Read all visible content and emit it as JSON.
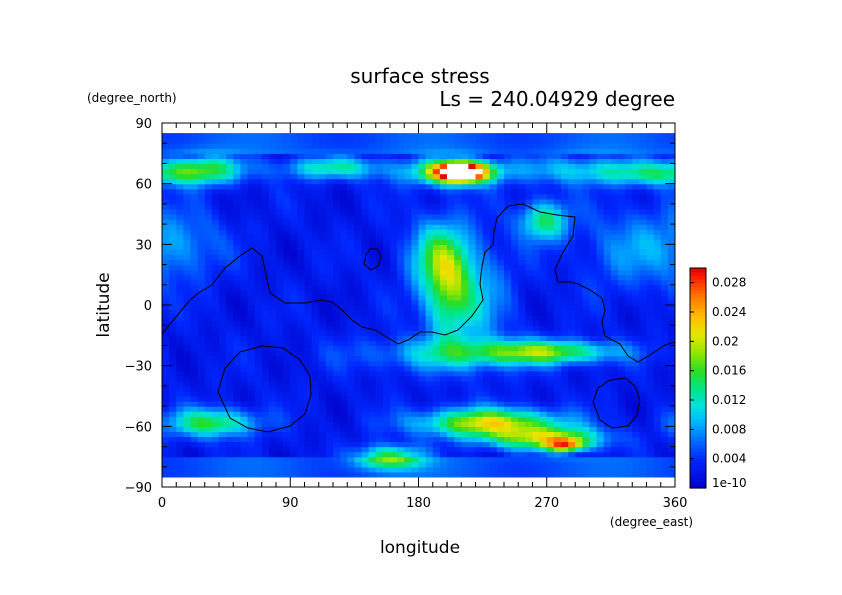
{
  "chart_data": {
    "type": "heatmap",
    "title": "surface stress",
    "subtitle": "Ls = 240.04929 degree",
    "xlabel": "longitude",
    "ylabel": "latitude",
    "x_units": "(degree_east)",
    "y_units": "(degree_north)",
    "xlim": [
      0,
      360
    ],
    "ylim": [
      -90,
      90
    ],
    "data_lat_range": [
      -85,
      85
    ],
    "x_ticks": [
      0,
      90,
      180,
      270,
      360
    ],
    "y_ticks": [
      -90,
      -60,
      -30,
      0,
      30,
      60,
      90
    ],
    "colorbar": {
      "min": 1e-10,
      "max": 0.03,
      "tick_values": [
        1e-10,
        0.004,
        0.008,
        0.012,
        0.016,
        0.02,
        0.024,
        0.028
      ],
      "tick_labels": [
        "1e-10",
        "0.004",
        "0.008",
        "0.012",
        "0.016",
        "0.02",
        "0.024",
        "0.028"
      ]
    },
    "grid": false,
    "field_features": [
      {
        "lon": 210,
        "lat": 66,
        "lon_width": 14,
        "lat_width": 3.5,
        "value": 0.031
      },
      {
        "lon": 198,
        "lat": 66,
        "lon_width": 22,
        "lat_width": 5,
        "value": 0.01
      },
      {
        "lon": 30,
        "lat": 67,
        "lon_width": 20,
        "lat_width": 5,
        "value": 0.013
      },
      {
        "lon": 120,
        "lat": 68,
        "lon_width": 25,
        "lat_width": 4,
        "value": 0.01
      },
      {
        "lon": 290,
        "lat": 67,
        "lon_width": 40,
        "lat_width": 5,
        "value": 0.007
      },
      {
        "lon": 345,
        "lat": 65,
        "lon_width": 25,
        "lat_width": 4,
        "value": 0.008
      },
      {
        "lon": 230,
        "lat": -58,
        "lon_width": 35,
        "lat_width": 5,
        "value": 0.018
      },
      {
        "lon": 270,
        "lat": -66,
        "lon_width": 28,
        "lat_width": 4,
        "value": 0.015
      },
      {
        "lon": 283,
        "lat": -69,
        "lon_width": 9,
        "lat_width": 2.5,
        "value": 0.016
      },
      {
        "lon": 35,
        "lat": -58,
        "lon_width": 22,
        "lat_width": 5,
        "value": 0.013
      },
      {
        "lon": 160,
        "lat": -75,
        "lon_width": 16,
        "lat_width": 4,
        "value": 0.014
      },
      {
        "lon": 270,
        "lat": -23,
        "lon_width": 35,
        "lat_width": 4,
        "value": 0.014
      },
      {
        "lon": 200,
        "lat": -24,
        "lon_width": 45,
        "lat_width": 6,
        "value": 0.007
      },
      {
        "lon": 200,
        "lat": 10,
        "lon_width": 12,
        "lat_width": 18,
        "value": 0.012
      },
      {
        "lon": 190,
        "lat": 25,
        "lon_width": 15,
        "lat_width": 12,
        "value": 0.007
      },
      {
        "lon": 220,
        "lat": 5,
        "lon_width": 18,
        "lat_width": 20,
        "value": 0.006
      },
      {
        "lon": 268,
        "lat": 42,
        "lon_width": 12,
        "lat_width": 7,
        "value": 0.012
      },
      {
        "lon": 330,
        "lat": 28,
        "lon_width": 25,
        "lat_width": 15,
        "value": 0.005
      },
      {
        "lon": 15,
        "lat": 30,
        "lon_width": 20,
        "lat_width": 12,
        "value": 0.005
      }
    ],
    "field_background": {
      "low_value": 0.0025,
      "polar_low_value": 0.0055
    }
  }
}
